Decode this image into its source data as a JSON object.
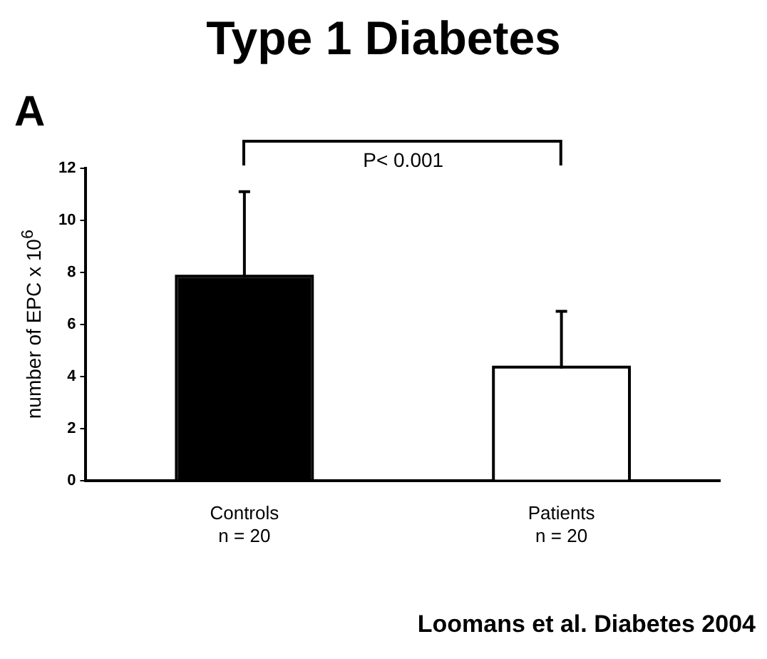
{
  "chart_data": {
    "type": "bar",
    "title": "Type 1 Diabetes",
    "ylabel": "number of EPC x 10$^{6}$",
    "categories": [
      "Controls\nn = 20",
      "Patients\nn = 20"
    ],
    "values": [
      7.8,
      4.3
    ],
    "colors": [
      "#000000",
      "#ffffff"
    ],
    "errors": [
      [
        7.8,
        11.1
      ],
      [
        4.3,
        6.5
      ]
    ],
    "ylim": [
      0,
      12
    ],
    "yticks": [
      0,
      2,
      4,
      6,
      8,
      10,
      12
    ],
    "annotations": [
      "A",
      "P< 0.001",
      "Loomans et al. Diabetes 2004"
    ]
  }
}
